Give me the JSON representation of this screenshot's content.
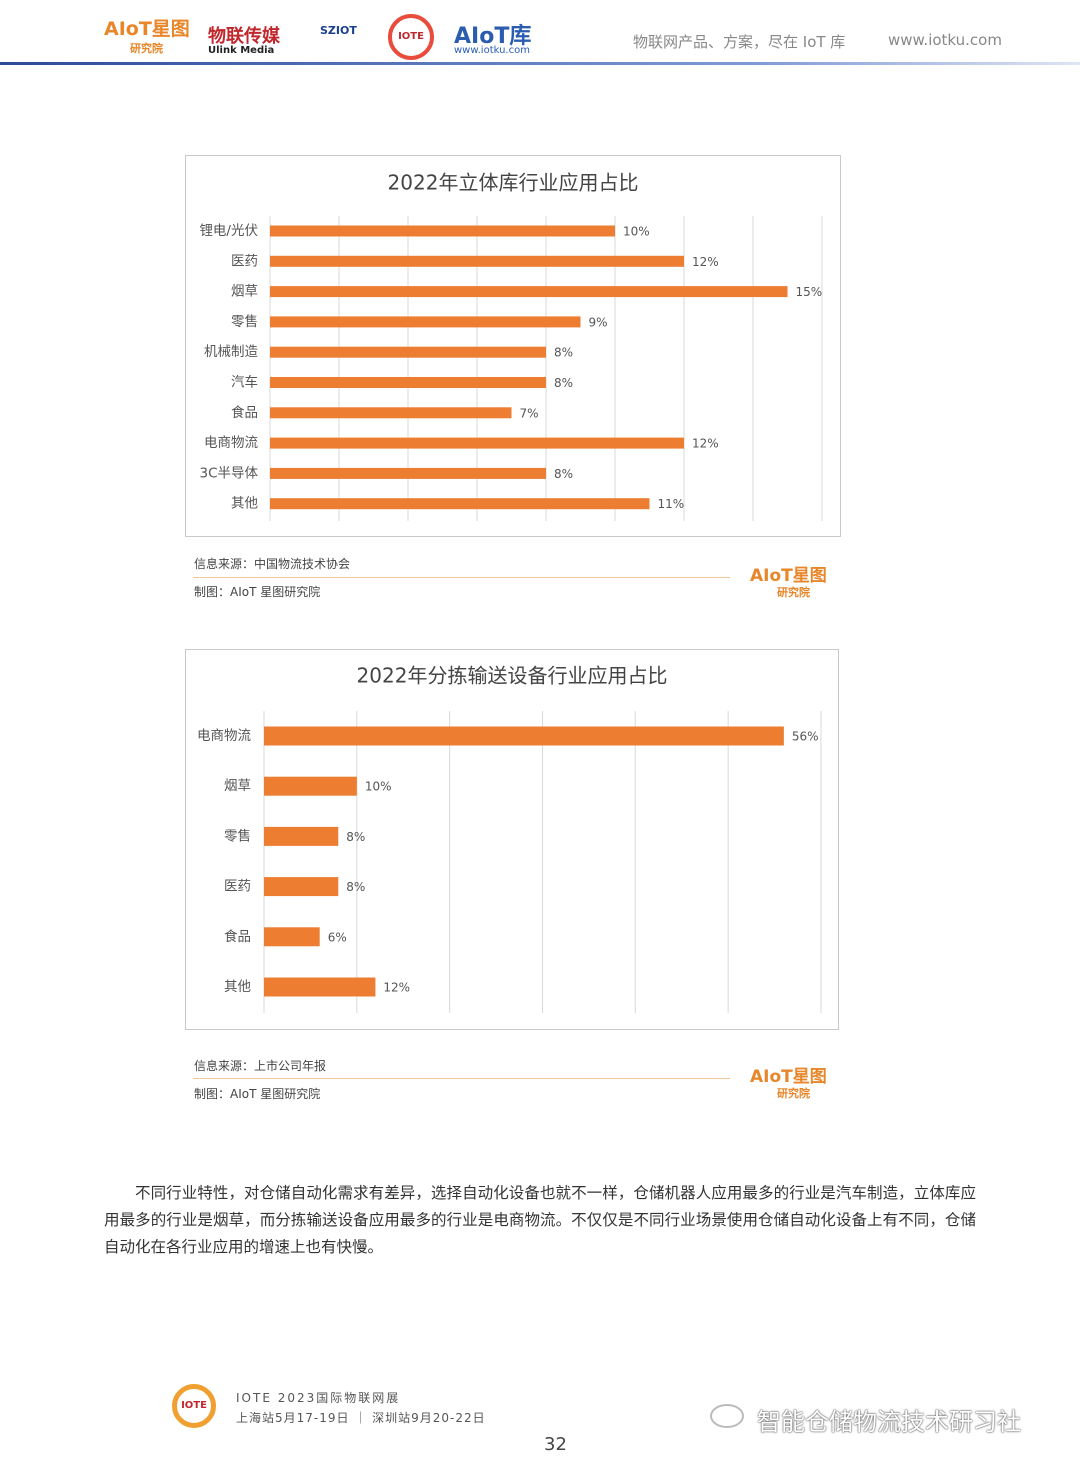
{
  "header": {
    "logos": [
      "AIoT星图",
      "研究院",
      "物联传媒",
      "Ulink Media",
      "SZIOT",
      "IOTE",
      "AIoT库",
      "www.iotku.com"
    ],
    "slogan": "物联网产品、方案，尽在 IoT 库",
    "url": "www.iotku.com"
  },
  "chart_data": [
    {
      "type": "bar",
      "orientation": "horizontal",
      "title": "2022年立体库行业应用占比",
      "categories": [
        "锂电/光伏",
        "医药",
        "烟草",
        "零售",
        "机械制造",
        "汽车",
        "食品",
        "电商物流",
        "3C半导体",
        "其他"
      ],
      "values": [
        10,
        12,
        15,
        9,
        8,
        8,
        7,
        12,
        8,
        11
      ],
      "value_labels": [
        "10%",
        "12%",
        "15%",
        "9%",
        "8%",
        "8%",
        "7%",
        "12%",
        "8%",
        "11%"
      ],
      "color": "#ed7d31",
      "xlim": [
        0,
        16
      ],
      "xticks": [
        0,
        2,
        4,
        6,
        8,
        10,
        12,
        14,
        16
      ],
      "grid": true
    },
    {
      "type": "bar",
      "orientation": "horizontal",
      "title": "2022年分拣输送设备行业应用占比",
      "categories": [
        "电商物流",
        "烟草",
        "零售",
        "医药",
        "食品",
        "其他"
      ],
      "values": [
        56,
        10,
        8,
        8,
        6,
        12
      ],
      "value_labels": [
        "56%",
        "10%",
        "8%",
        "8%",
        "6%",
        "12%"
      ],
      "color": "#ed7d31",
      "xlim": [
        0,
        60
      ],
      "xticks": [
        0,
        10,
        20,
        30,
        40,
        50,
        60
      ],
      "grid": true
    }
  ],
  "sources": [
    {
      "source": "信息来源：中国物流技术协会",
      "maker": "制图：AIoT 星图研究院",
      "logo": "AIoT星图",
      "logo_sub": "研究院"
    },
    {
      "source": "信息来源：上市公司年报",
      "maker": "制图：AIoT 星图研究院",
      "logo": "AIoT星图",
      "logo_sub": "研究院"
    }
  ],
  "paragraph": "不同行业特性，对仓储自动化需求有差异，选择自动化设备也就不一样，仓储机器人应用最多的行业是汽车制造，立体库应用最多的行业是烟草，而分拣输送设备应用最多的行业是电商物流。不仅仅是不同行业场景使用仓储自动化设备上有不同，仓储自动化在各行业应用的增速上也有快慢。",
  "footer": {
    "logo": "IOTE",
    "event": "IOTE 2023国际物联网展",
    "dates": "上海站5月17-19日 ｜ 深圳站9月20-22日",
    "page": "32",
    "watermark": "智能仓储物流技术研习社"
  }
}
